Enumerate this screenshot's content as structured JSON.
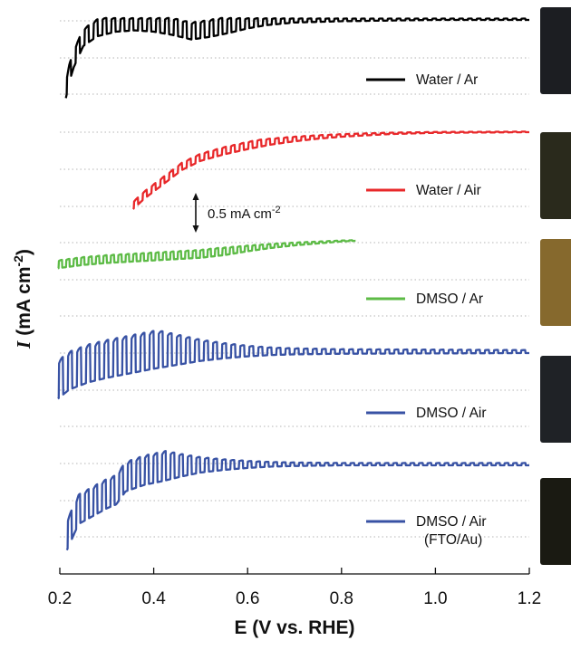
{
  "chart_data": {
    "type": "line",
    "title": "",
    "xlabel": "E (V vs. RHE)",
    "ylabel_symbol": "I",
    "ylabel_units": "(mA cm",
    "ylabel_sup": "-2",
    "ylabel_close": ")",
    "xlim": [
      0.2,
      1.2
    ],
    "x_ticks": [
      "0.2",
      "0.4",
      "0.6",
      "0.8",
      "1.0",
      "1.2"
    ],
    "y_ticks_visible": false,
    "grid": "dotted horizontal",
    "legend_position": "right of each trace",
    "scale_bar": {
      "label": "0.5 mA cm",
      "sup": "-2",
      "value_mA_cm2": 0.5
    },
    "series": [
      {
        "name": "Water / Ar",
        "name_line2": "",
        "color": "#000000",
        "x_start": 0.213,
        "x_end": 1.2,
        "relative_current_mA_cm2": [
          [
            0.213,
            -1.2
          ],
          [
            0.22,
            -0.95
          ],
          [
            0.23,
            -0.72
          ],
          [
            0.25,
            -0.4
          ],
          [
            0.28,
            -0.25
          ],
          [
            0.32,
            -0.18
          ],
          [
            0.36,
            -0.16
          ],
          [
            0.4,
            -0.18
          ],
          [
            0.44,
            -0.23
          ],
          [
            0.48,
            -0.3
          ],
          [
            0.52,
            -0.26
          ],
          [
            0.56,
            -0.2
          ],
          [
            0.6,
            -0.13
          ],
          [
            0.64,
            -0.08
          ],
          [
            0.7,
            -0.04
          ],
          [
            0.8,
            -0.02
          ],
          [
            0.9,
            -0.01
          ],
          [
            1.0,
            0.0
          ],
          [
            1.2,
            0.0
          ]
        ],
        "chopped_light_amplitude_mA_cm2": 0.26,
        "pulse_count": 52
      },
      {
        "name": "Water / Air",
        "name_line2": "",
        "color": "#e8282a",
        "x_start": 0.356,
        "x_end": 1.2,
        "relative_current_mA_cm2": [
          [
            0.356,
            -1.18
          ],
          [
            0.38,
            -1.02
          ],
          [
            0.42,
            -0.8
          ],
          [
            0.46,
            -0.58
          ],
          [
            0.5,
            -0.44
          ],
          [
            0.55,
            -0.34
          ],
          [
            0.6,
            -0.26
          ],
          [
            0.65,
            -0.19
          ],
          [
            0.7,
            -0.14
          ],
          [
            0.75,
            -0.1
          ],
          [
            0.8,
            -0.07
          ],
          [
            0.85,
            -0.05
          ],
          [
            0.9,
            -0.03
          ],
          [
            0.95,
            -0.02
          ],
          [
            1.0,
            -0.01
          ],
          [
            1.2,
            0.0
          ]
        ],
        "chopped_light_amplitude_mA_cm2": 0.11,
        "pulse_count": 45
      },
      {
        "name": "DMSO / Ar",
        "name_line2": "",
        "color": "#5dbb46",
        "x_start": 0.196,
        "x_end": 0.83,
        "relative_current_mA_cm2": [
          [
            0.196,
            -0.42
          ],
          [
            0.25,
            -0.37
          ],
          [
            0.3,
            -0.34
          ],
          [
            0.35,
            -0.32
          ],
          [
            0.4,
            -0.3
          ],
          [
            0.45,
            -0.28
          ],
          [
            0.5,
            -0.26
          ],
          [
            0.55,
            -0.22
          ],
          [
            0.6,
            -0.16
          ],
          [
            0.65,
            -0.11
          ],
          [
            0.7,
            -0.07
          ],
          [
            0.75,
            -0.04
          ],
          [
            0.8,
            -0.01
          ],
          [
            0.83,
            0.0
          ]
        ],
        "chopped_light_amplitude_mA_cm2": 0.12,
        "pulse_count": 40
      },
      {
        "name": "DMSO / Air",
        "name_line2": "",
        "color": "#3852a4",
        "x_start": 0.196,
        "x_end": 1.2,
        "relative_current_mA_cm2": [
          [
            0.196,
            -0.7
          ],
          [
            0.22,
            -0.56
          ],
          [
            0.26,
            -0.45
          ],
          [
            0.3,
            -0.38
          ],
          [
            0.35,
            -0.31
          ],
          [
            0.4,
            -0.24
          ],
          [
            0.45,
            -0.18
          ],
          [
            0.5,
            -0.12
          ],
          [
            0.55,
            -0.08
          ],
          [
            0.6,
            -0.05
          ],
          [
            0.65,
            -0.03
          ],
          [
            0.7,
            -0.02
          ],
          [
            0.8,
            -0.01
          ],
          [
            1.2,
            0.0
          ]
        ],
        "chopped_light_amplitude_mA_cm2": 0.58,
        "pulse_count": 52
      },
      {
        "name": "DMSO / Air",
        "name_line2": "(FTO/Au)",
        "color": "#3852a4",
        "x_start": 0.215,
        "x_end": 1.2,
        "relative_current_mA_cm2": [
          [
            0.215,
            -1.3
          ],
          [
            0.24,
            -0.9
          ],
          [
            0.27,
            -0.78
          ],
          [
            0.3,
            -0.66
          ],
          [
            0.32,
            -0.6
          ],
          [
            0.34,
            -0.4
          ],
          [
            0.38,
            -0.3
          ],
          [
            0.42,
            -0.24
          ],
          [
            0.46,
            -0.17
          ],
          [
            0.5,
            -0.11
          ],
          [
            0.55,
            -0.07
          ],
          [
            0.6,
            -0.04
          ],
          [
            0.65,
            -0.02
          ],
          [
            0.7,
            -0.01
          ],
          [
            0.8,
            0.0
          ],
          [
            1.2,
            0.0
          ]
        ],
        "chopped_light_amplitude_mA_cm2": 0.45,
        "pulse_count": 54
      }
    ]
  },
  "photos": [
    {
      "name": "photo-water-ar",
      "color": "#1c1e22"
    },
    {
      "name": "photo-water-air",
      "color": "#2a2a1c"
    },
    {
      "name": "photo-dmso-ar",
      "color": "#86692d"
    },
    {
      "name": "photo-dmso-air",
      "color": "#1f2226"
    },
    {
      "name": "photo-dmso-air-fto-au",
      "color": "#1a1a12"
    }
  ]
}
